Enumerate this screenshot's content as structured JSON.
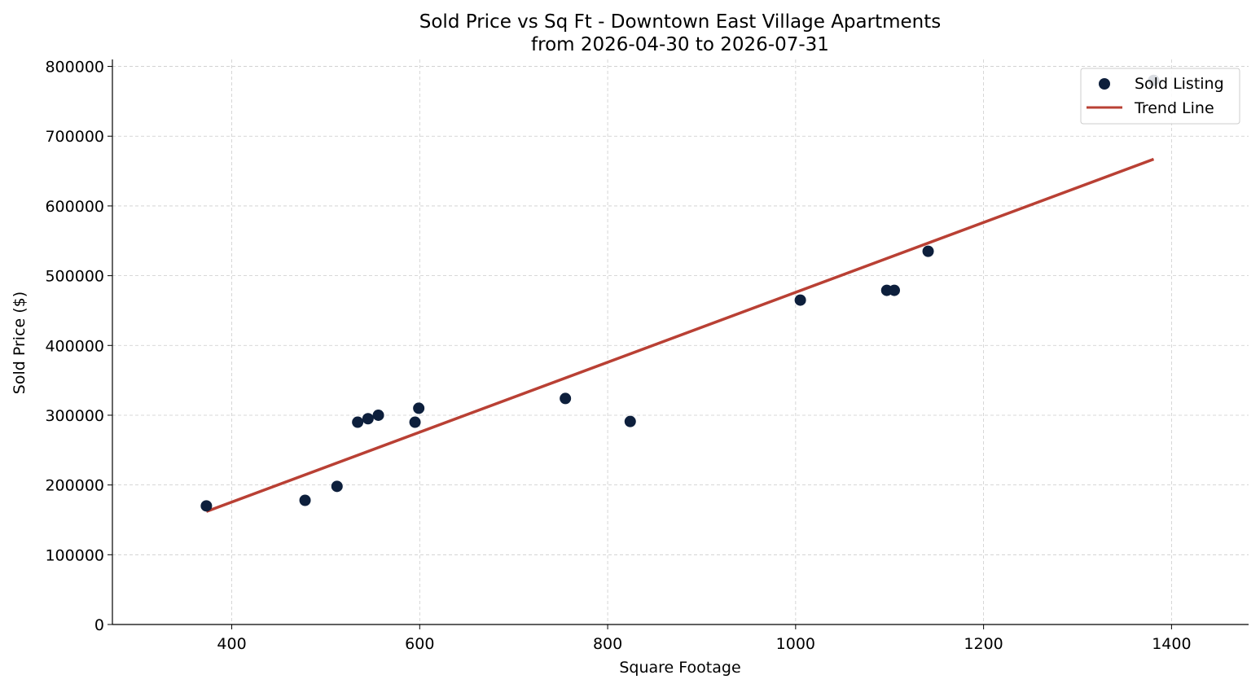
{
  "chart_data": {
    "type": "scatter",
    "title": "Sold Price vs Sq Ft - Downtown East Village Apartments",
    "subtitle": "from 2026-04-30 to 2026-07-31",
    "xlabel": "Square Footage",
    "ylabel": "Sold Price ($)",
    "xlim": [
      273,
      1482
    ],
    "ylim": [
      0,
      810000
    ],
    "x_ticks": [
      400,
      600,
      800,
      1000,
      1200,
      1400
    ],
    "y_ticks": [
      0,
      100000,
      200000,
      300000,
      400000,
      500000,
      600000,
      700000,
      800000
    ],
    "grid": true,
    "legend_position": "top-right",
    "series": [
      {
        "name": "Sold Listing",
        "kind": "scatter",
        "color": "#0d1f3c",
        "points": [
          {
            "x": 373,
            "y": 170000
          },
          {
            "x": 478,
            "y": 178000
          },
          {
            "x": 512,
            "y": 198000
          },
          {
            "x": 534,
            "y": 290000
          },
          {
            "x": 545,
            "y": 295000
          },
          {
            "x": 556,
            "y": 300000
          },
          {
            "x": 595,
            "y": 290000
          },
          {
            "x": 599,
            "y": 310000
          },
          {
            "x": 755,
            "y": 324000
          },
          {
            "x": 824,
            "y": 291000
          },
          {
            "x": 1005,
            "y": 465000
          },
          {
            "x": 1097,
            "y": 479000
          },
          {
            "x": 1105,
            "y": 479000
          },
          {
            "x": 1141,
            "y": 535000
          },
          {
            "x": 1381,
            "y": 780000
          }
        ]
      },
      {
        "name": "Trend Line",
        "kind": "line",
        "color": "#b94034",
        "points": [
          {
            "x": 373,
            "y": 162000
          },
          {
            "x": 1381,
            "y": 667000
          }
        ]
      }
    ]
  }
}
